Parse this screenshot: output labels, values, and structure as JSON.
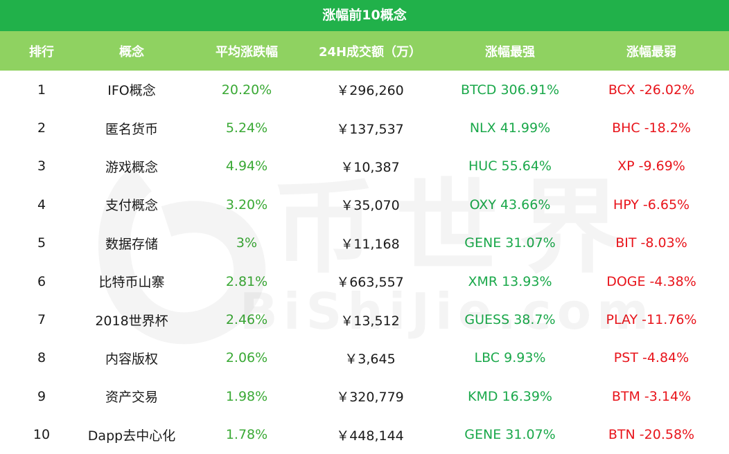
{
  "title": "涨幅前10概念",
  "columns": [
    "排行",
    "概念",
    "平均涨跌幅",
    "24H成交额（万）",
    "涨幅最强",
    "涨幅最弱"
  ],
  "rows": [
    {
      "rank": "1",
      "concept": "IFO概念",
      "avg": "20.20%",
      "volume": "￥296,260",
      "strongest": "BTCD 306.91%",
      "weakest": "BCX -26.02%"
    },
    {
      "rank": "2",
      "concept": "匿名货币",
      "avg": "5.24%",
      "volume": "￥137,537",
      "strongest": "NLX 41.99%",
      "weakest": "BHC -18.2%"
    },
    {
      "rank": "3",
      "concept": "游戏概念",
      "avg": "4.94%",
      "volume": "￥10,387",
      "strongest": "HUC 55.64%",
      "weakest": "XP -9.69%"
    },
    {
      "rank": "4",
      "concept": "支付概念",
      "avg": "3.20%",
      "volume": "￥35,070",
      "strongest": "OXY 43.66%",
      "weakest": "HPY -6.65%"
    },
    {
      "rank": "5",
      "concept": "数据存储",
      "avg": "3%",
      "volume": "￥11,168",
      "strongest": "GENE 31.07%",
      "weakest": "BIT -8.03%"
    },
    {
      "rank": "6",
      "concept": "比特币山寨",
      "avg": "2.81%",
      "volume": "￥663,557",
      "strongest": "XMR 13.93%",
      "weakest": "DOGE -4.38%"
    },
    {
      "rank": "7",
      "concept": "2018世界杯",
      "avg": "2.46%",
      "volume": "￥13,512",
      "strongest": "GUESS 38.7%",
      "weakest": "PLAY -11.76%"
    },
    {
      "rank": "8",
      "concept": "内容版权",
      "avg": "2.06%",
      "volume": "￥3,645",
      "strongest": "LBC 9.93%",
      "weakest": "PST -4.84%"
    },
    {
      "rank": "9",
      "concept": "资产交易",
      "avg": "1.98%",
      "volume": "￥320,779",
      "strongest": "KMD 16.39%",
      "weakest": "BTM -3.14%"
    },
    {
      "rank": "10",
      "concept": "Dapp去中心化",
      "avg": "1.78%",
      "volume": "￥448,144",
      "strongest": "GENE 31.07%",
      "weakest": "BTN -20.58%"
    }
  ],
  "watermark": {
    "cn": "币世界",
    "en": "BiShiJie.com"
  },
  "colors": {
    "title_bg": "#21b14a",
    "header_bg": "#8fd261",
    "positive": "#3aa935",
    "strongest": "#1aa84a",
    "negative": "#e8141b"
  }
}
